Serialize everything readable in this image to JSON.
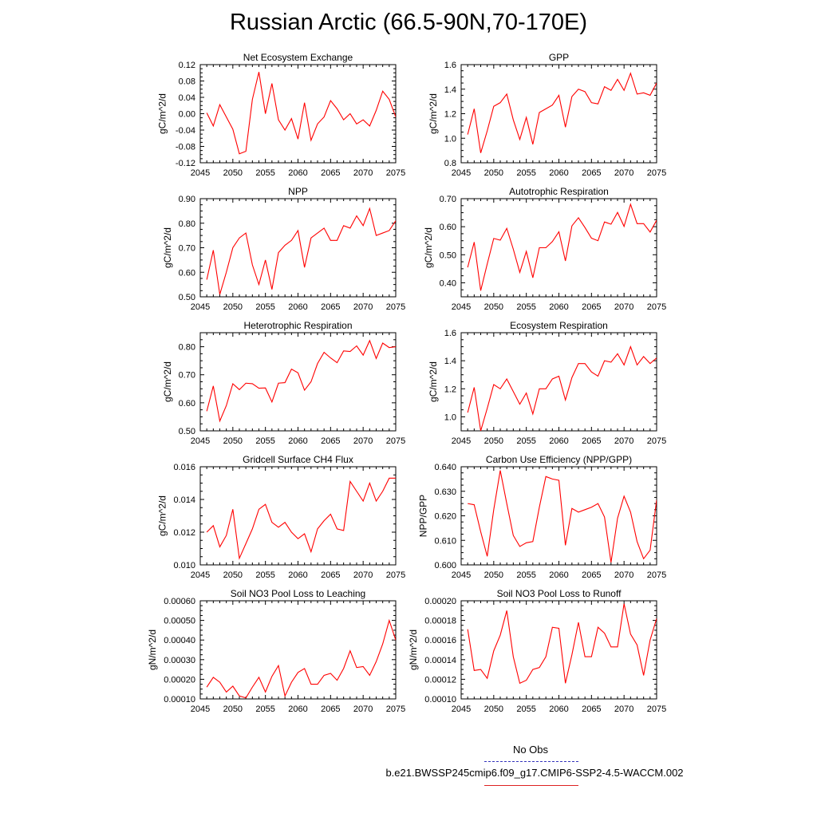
{
  "title": "Russian Arctic (66.5-90N,70-170E)",
  "legend": {
    "obs_label": "No Obs",
    "obs_color": "#3333bb",
    "run_label": "b.e21.BWSSP245cmip6.f09_g17.CMIP6-SSP2-4.5-WACCM.002",
    "run_color": "#ff0000"
  },
  "chart_data": [
    {
      "type": "line",
      "title": "Net Ecosystem Exchange",
      "ylabel": "gC/m^2/d",
      "xlim": [
        2045,
        2075
      ],
      "ylim": [
        -0.12,
        0.12
      ],
      "xticks": [
        "2045",
        "2050",
        "2055",
        "2060",
        "2065",
        "2070",
        "2075"
      ],
      "yticks": [
        "-0.12",
        "-0.08",
        "-0.04",
        "0.00",
        "0.04",
        "0.08",
        "0.12"
      ],
      "x": [
        2046,
        2047,
        2048,
        2049,
        2050,
        2051,
        2052,
        2053,
        2054,
        2055,
        2056,
        2057,
        2058,
        2059,
        2060,
        2061,
        2062,
        2063,
        2064,
        2065,
        2066,
        2067,
        2068,
        2069,
        2070,
        2071,
        2072,
        2073,
        2074,
        2075
      ],
      "series": [
        {
          "name": "b.e21.BWSSP245cmip6.f09_g17.CMIP6-SSP2-4.5-WACCM.002",
          "values": [
            0.002,
            -0.03,
            0.022,
            -0.008,
            -0.038,
            -0.098,
            -0.092,
            0.035,
            0.102,
            0.0,
            0.074,
            -0.015,
            -0.04,
            -0.012,
            -0.062,
            0.027,
            -0.065,
            -0.025,
            -0.008,
            0.032,
            0.012,
            -0.015,
            0.0,
            -0.025,
            -0.015,
            -0.03,
            0.008,
            0.055,
            0.035,
            -0.008
          ]
        }
      ]
    },
    {
      "type": "line",
      "title": "GPP",
      "ylabel": "gC/m^2/d",
      "xlim": [
        2045,
        2075
      ],
      "ylim": [
        0.8,
        1.6
      ],
      "xticks": [
        "2045",
        "2050",
        "2055",
        "2060",
        "2065",
        "2070",
        "2075"
      ],
      "yticks": [
        "0.8",
        "1.0",
        "1.2",
        "1.4",
        "1.6"
      ],
      "x": [
        2046,
        2047,
        2048,
        2049,
        2050,
        2051,
        2052,
        2053,
        2054,
        2055,
        2056,
        2057,
        2058,
        2059,
        2060,
        2061,
        2062,
        2063,
        2064,
        2065,
        2066,
        2067,
        2068,
        2069,
        2070,
        2071,
        2072,
        2073,
        2074,
        2075
      ],
      "series": [
        {
          "name": "b.e21.BWSSP245cmip6.f09_g17.CMIP6-SSP2-4.5-WACCM.002",
          "values": [
            1.03,
            1.24,
            0.88,
            1.06,
            1.26,
            1.29,
            1.36,
            1.15,
            0.99,
            1.17,
            0.95,
            1.21,
            1.24,
            1.27,
            1.35,
            1.09,
            1.34,
            1.4,
            1.38,
            1.29,
            1.28,
            1.42,
            1.39,
            1.48,
            1.39,
            1.53,
            1.36,
            1.37,
            1.35,
            1.45
          ]
        }
      ]
    },
    {
      "type": "line",
      "title": "NPP",
      "ylabel": "gC/m^2/d",
      "xlim": [
        2045,
        2075
      ],
      "ylim": [
        0.5,
        0.9
      ],
      "xticks": [
        "2045",
        "2050",
        "2055",
        "2060",
        "2065",
        "2070",
        "2075"
      ],
      "yticks": [
        "0.50",
        "0.60",
        "0.70",
        "0.80",
        "0.90"
      ],
      "x": [
        2046,
        2047,
        2048,
        2049,
        2050,
        2051,
        2052,
        2053,
        2054,
        2055,
        2056,
        2057,
        2058,
        2059,
        2060,
        2061,
        2062,
        2063,
        2064,
        2065,
        2066,
        2067,
        2068,
        2069,
        2070,
        2071,
        2072,
        2073,
        2074,
        2075
      ],
      "series": [
        {
          "name": "b.e21.BWSSP245cmip6.f09_g17.CMIP6-SSP2-4.5-WACCM.002",
          "values": [
            0.57,
            0.69,
            0.51,
            0.6,
            0.7,
            0.74,
            0.76,
            0.63,
            0.55,
            0.65,
            0.53,
            0.68,
            0.71,
            0.73,
            0.77,
            0.62,
            0.74,
            0.76,
            0.78,
            0.73,
            0.73,
            0.79,
            0.78,
            0.83,
            0.79,
            0.86,
            0.75,
            0.76,
            0.77,
            0.81
          ]
        }
      ]
    },
    {
      "type": "line",
      "title": "Autotrophic Respiration",
      "ylabel": "gC/m^2/d",
      "xlim": [
        2045,
        2075
      ],
      "ylim": [
        0.35,
        0.7
      ],
      "xticks": [
        "2045",
        "2050",
        "2055",
        "2060",
        "2065",
        "2070",
        "2075"
      ],
      "yticks": [
        "0.40",
        "0.50",
        "0.60",
        "0.70"
      ],
      "x": [
        2046,
        2047,
        2048,
        2049,
        2050,
        2051,
        2052,
        2053,
        2054,
        2055,
        2056,
        2057,
        2058,
        2059,
        2060,
        2061,
        2062,
        2063,
        2064,
        2065,
        2066,
        2067,
        2068,
        2069,
        2070,
        2071,
        2072,
        2073,
        2074,
        2075
      ],
      "series": [
        {
          "name": "b.e21.BWSSP245cmip6.f09_g17.CMIP6-SSP2-4.5-WACCM.002",
          "values": [
            0.455,
            0.545,
            0.372,
            0.467,
            0.558,
            0.552,
            0.594,
            0.52,
            0.437,
            0.512,
            0.418,
            0.525,
            0.525,
            0.547,
            0.582,
            0.478,
            0.603,
            0.632,
            0.597,
            0.559,
            0.55,
            0.617,
            0.609,
            0.651,
            0.601,
            0.68,
            0.611,
            0.611,
            0.581,
            0.623
          ]
        }
      ]
    },
    {
      "type": "line",
      "title": "Heterotrophic Respiration",
      "ylabel": "gC/m^2/d",
      "xlim": [
        2045,
        2075
      ],
      "ylim": [
        0.5,
        0.85
      ],
      "xticks": [
        "2045",
        "2050",
        "2055",
        "2060",
        "2065",
        "2070",
        "2075"
      ],
      "yticks": [
        "0.50",
        "0.60",
        "0.70",
        "0.80"
      ],
      "x": [
        2046,
        2047,
        2048,
        2049,
        2050,
        2051,
        2052,
        2053,
        2054,
        2055,
        2056,
        2057,
        2058,
        2059,
        2060,
        2061,
        2062,
        2063,
        2064,
        2065,
        2066,
        2067,
        2068,
        2069,
        2070,
        2071,
        2072,
        2073,
        2074,
        2075
      ],
      "series": [
        {
          "name": "b.e21.BWSSP245cmip6.f09_g17.CMIP6-SSP2-4.5-WACCM.002",
          "values": [
            0.57,
            0.66,
            0.535,
            0.59,
            0.668,
            0.647,
            0.67,
            0.668,
            0.652,
            0.653,
            0.603,
            0.67,
            0.672,
            0.72,
            0.707,
            0.645,
            0.675,
            0.74,
            0.78,
            0.76,
            0.743,
            0.785,
            0.783,
            0.803,
            0.77,
            0.822,
            0.758,
            0.813,
            0.797,
            0.8
          ]
        }
      ]
    },
    {
      "type": "line",
      "title": "Ecosystem Respiration",
      "ylabel": "gC/m^2/d",
      "xlim": [
        2045,
        2075
      ],
      "ylim": [
        0.9,
        1.6
      ],
      "xticks": [
        "2045",
        "2050",
        "2055",
        "2060",
        "2065",
        "2070",
        "2075"
      ],
      "yticks": [
        "1.0",
        "1.2",
        "1.4",
        "1.6"
      ],
      "x": [
        2046,
        2047,
        2048,
        2049,
        2050,
        2051,
        2052,
        2053,
        2054,
        2055,
        2056,
        2057,
        2058,
        2059,
        2060,
        2061,
        2062,
        2063,
        2064,
        2065,
        2066,
        2067,
        2068,
        2069,
        2070,
        2071,
        2072,
        2073,
        2074,
        2075
      ],
      "series": [
        {
          "name": "b.e21.BWSSP245cmip6.f09_g17.CMIP6-SSP2-4.5-WACCM.002",
          "values": [
            1.03,
            1.21,
            0.9,
            1.06,
            1.23,
            1.2,
            1.27,
            1.18,
            1.09,
            1.17,
            1.02,
            1.2,
            1.2,
            1.27,
            1.29,
            1.12,
            1.28,
            1.38,
            1.38,
            1.32,
            1.29,
            1.4,
            1.39,
            1.45,
            1.37,
            1.5,
            1.37,
            1.43,
            1.38,
            1.42
          ]
        }
      ]
    },
    {
      "type": "line",
      "title": "Gridcell Surface CH4 Flux",
      "ylabel": "gC/m^2/d",
      "xlim": [
        2045,
        2075
      ],
      "ylim": [
        0.01,
        0.016
      ],
      "xticks": [
        "2045",
        "2050",
        "2055",
        "2060",
        "2065",
        "2070",
        "2075"
      ],
      "yticks": [
        "0.010",
        "0.012",
        "0.014",
        "0.016"
      ],
      "x": [
        2046,
        2047,
        2048,
        2049,
        2050,
        2051,
        2052,
        2053,
        2054,
        2055,
        2056,
        2057,
        2058,
        2059,
        2060,
        2061,
        2062,
        2063,
        2064,
        2065,
        2066,
        2067,
        2068,
        2069,
        2070,
        2071,
        2072,
        2073,
        2074,
        2075
      ],
      "series": [
        {
          "name": "b.e21.BWSSP245cmip6.f09_g17.CMIP6-SSP2-4.5-WACCM.002",
          "values": [
            0.012,
            0.0124,
            0.0111,
            0.0118,
            0.0134,
            0.0104,
            0.0113,
            0.0122,
            0.0134,
            0.0137,
            0.0126,
            0.0123,
            0.0126,
            0.012,
            0.0116,
            0.0119,
            0.0108,
            0.0122,
            0.0127,
            0.0131,
            0.0122,
            0.0121,
            0.0151,
            0.0145,
            0.0139,
            0.015,
            0.0139,
            0.0145,
            0.0153,
            0.0153
          ]
        }
      ]
    },
    {
      "type": "line",
      "title": "Carbon Use Efficiency (NPP/GPP)",
      "ylabel": "NPP/GPP",
      "xlim": [
        2045,
        2075
      ],
      "ylim": [
        0.6,
        0.64
      ],
      "xticks": [
        "2045",
        "2050",
        "2055",
        "2060",
        "2065",
        "2070",
        "2075"
      ],
      "yticks": [
        "0.600",
        "0.610",
        "0.620",
        "0.630",
        "0.640"
      ],
      "x": [
        2046,
        2047,
        2048,
        2049,
        2050,
        2051,
        2052,
        2053,
        2054,
        2055,
        2056,
        2057,
        2058,
        2059,
        2060,
        2061,
        2062,
        2063,
        2064,
        2065,
        2066,
        2067,
        2068,
        2069,
        2070,
        2071,
        2072,
        2073,
        2074,
        2075
      ],
      "series": [
        {
          "name": "b.e21.BWSSP245cmip6.f09_g17.CMIP6-SSP2-4.5-WACCM.002",
          "values": [
            0.625,
            0.6245,
            0.6135,
            0.6035,
            0.6225,
            0.6385,
            0.625,
            0.612,
            0.6075,
            0.609,
            0.6095,
            0.6235,
            0.636,
            0.635,
            0.6345,
            0.608,
            0.623,
            0.6215,
            0.6225,
            0.6235,
            0.625,
            0.6195,
            0.601,
            0.619,
            0.628,
            0.6215,
            0.6095,
            0.6025,
            0.606,
            0.6265
          ]
        }
      ]
    },
    {
      "type": "line",
      "title": "Soil NO3 Pool Loss to Leaching",
      "ylabel": "gN/m^2/d",
      "xlim": [
        2045,
        2075
      ],
      "ylim": [
        0.0001,
        0.0006
      ],
      "xticks": [
        "2045",
        "2050",
        "2055",
        "2060",
        "2065",
        "2070",
        "2075"
      ],
      "yticks": [
        "0.00010",
        "0.00020",
        "0.00030",
        "0.00040",
        "0.00050",
        "0.00060"
      ],
      "x": [
        2046,
        2047,
        2048,
        2049,
        2050,
        2051,
        2052,
        2053,
        2054,
        2055,
        2056,
        2057,
        2058,
        2059,
        2060,
        2061,
        2062,
        2063,
        2064,
        2065,
        2066,
        2067,
        2068,
        2069,
        2070,
        2071,
        2072,
        2073,
        2074,
        2075
      ],
      "series": [
        {
          "name": "b.e21.BWSSP245cmip6.f09_g17.CMIP6-SSP2-4.5-WACCM.002",
          "values": [
            0.00016,
            0.00021,
            0.000185,
            0.000135,
            0.000165,
            0.000115,
            0.000105,
            0.00016,
            0.00021,
            0.000135,
            0.000215,
            0.00027,
            0.000115,
            0.000185,
            0.000235,
            0.000255,
            0.000175,
            0.000175,
            0.00022,
            0.00023,
            0.000195,
            0.000255,
            0.000345,
            0.00026,
            0.000265,
            0.00022,
            0.00029,
            0.00038,
            0.0005,
            0.0004
          ]
        }
      ]
    },
    {
      "type": "line",
      "title": "Soil NO3 Pool Loss to Runoff",
      "ylabel": "gN/m^2/d",
      "xlim": [
        2045,
        2075
      ],
      "ylim": [
        0.0001,
        0.0002
      ],
      "xticks": [
        "2045",
        "2050",
        "2055",
        "2060",
        "2065",
        "2070",
        "2075"
      ],
      "yticks": [
        "0.00010",
        "0.00012",
        "0.00014",
        "0.00016",
        "0.00018",
        "0.00020"
      ],
      "x": [
        2046,
        2047,
        2048,
        2049,
        2050,
        2051,
        2052,
        2053,
        2054,
        2055,
        2056,
        2057,
        2058,
        2059,
        2060,
        2061,
        2062,
        2063,
        2064,
        2065,
        2066,
        2067,
        2068,
        2069,
        2070,
        2071,
        2072,
        2073,
        2074,
        2075
      ],
      "series": [
        {
          "name": "b.e21.BWSSP245cmip6.f09_g17.CMIP6-SSP2-4.5-WACCM.002",
          "values": [
            0.000171,
            0.000129,
            0.00013,
            0.000121,
            0.000149,
            0.000165,
            0.00019,
            0.000143,
            0.000116,
            0.000119,
            0.00013,
            0.000132,
            0.000143,
            0.000173,
            0.000172,
            0.000116,
            0.000145,
            0.000178,
            0.000143,
            0.000143,
            0.000173,
            0.000167,
            0.000153,
            0.000153,
            0.000197,
            0.000166,
            0.000155,
            0.000124,
            0.00016,
            0.000182
          ]
        }
      ]
    }
  ]
}
